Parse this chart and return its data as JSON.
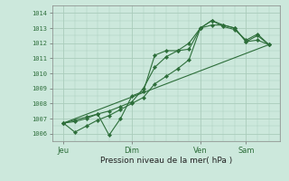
{
  "bg_color": "#cce8dc",
  "grid_color": "#aaccbb",
  "line_color": "#2d6e3a",
  "ylabel_values": [
    1006,
    1007,
    1008,
    1009,
    1010,
    1011,
    1012,
    1013,
    1014
  ],
  "ylim": [
    1005.5,
    1014.5
  ],
  "xlabel": "Pression niveau de la mer( hPa )",
  "xtick_labels": [
    "Jeu",
    "Dim",
    "Ven",
    "Sam"
  ],
  "xtick_positions": [
    0,
    3,
    6,
    8
  ],
  "xlim": [
    -0.5,
    9.5
  ],
  "series": [
    {
      "x": [
        0,
        0.5,
        1.0,
        1.5,
        2.0,
        2.5,
        3.0,
        3.5,
        4.0,
        4.5,
        5.0,
        5.5,
        6.0,
        6.5,
        7.0,
        7.5,
        8.0,
        8.5,
        9.0
      ],
      "y": [
        1006.7,
        1006.1,
        1006.5,
        1006.9,
        1007.2,
        1007.6,
        1008.0,
        1008.4,
        1009.3,
        1009.8,
        1010.3,
        1010.9,
        1013.0,
        1013.2,
        1013.2,
        1013.0,
        1012.1,
        1012.5,
        1011.9
      ],
      "markers": true
    },
    {
      "x": [
        0,
        0.5,
        1.0,
        1.5,
        2.0,
        2.5,
        3.0,
        3.5,
        4.0,
        4.5,
        5.0,
        5.5,
        6.0,
        6.5,
        7.0,
        7.5,
        8.0,
        8.5,
        9.0
      ],
      "y": [
        1006.7,
        1006.9,
        1007.1,
        1007.3,
        1005.9,
        1007.0,
        1008.5,
        1008.8,
        1011.2,
        1011.5,
        1011.5,
        1011.6,
        1013.0,
        1013.5,
        1013.1,
        1012.9,
        1012.2,
        1012.6,
        1011.9
      ],
      "markers": true
    },
    {
      "x": [
        0,
        0.5,
        1.0,
        1.5,
        2.0,
        2.5,
        3.0,
        3.5,
        4.0,
        4.5,
        5.0,
        5.5,
        6.0,
        6.5,
        7.0,
        7.5,
        8.0,
        8.5,
        9.0
      ],
      "y": [
        1006.7,
        1006.8,
        1007.0,
        1007.3,
        1007.5,
        1007.8,
        1008.1,
        1009.0,
        1010.4,
        1011.1,
        1011.5,
        1012.0,
        1013.0,
        1013.5,
        1013.2,
        1013.0,
        1012.1,
        1012.2,
        1011.9
      ],
      "markers": true
    },
    {
      "x": [
        0,
        9.0
      ],
      "y": [
        1006.7,
        1011.9
      ],
      "markers": false
    }
  ]
}
